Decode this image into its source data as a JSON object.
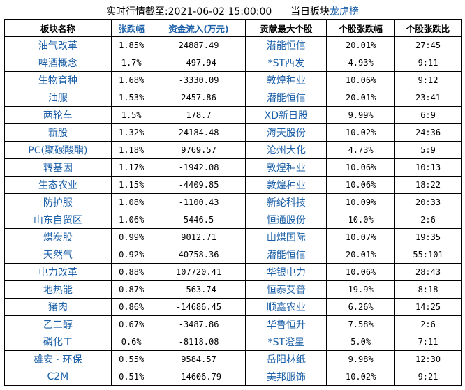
{
  "title": {
    "prefix": "实时行情截至:2021-06-02 15:00:00",
    "label": "当日板块",
    "link": "龙虎榜"
  },
  "headers": [
    "板块名称",
    "张跌幅",
    "资金流入(万元)",
    "贡献最大个股",
    "个股张跌幅",
    "个股张跌比"
  ],
  "rows": [
    [
      "油气改革",
      "1.85%",
      "24887.49",
      "潜能恒信",
      "20.01%",
      "27:45"
    ],
    [
      "啤酒概念",
      "1.7%",
      "-497.94",
      "*ST西发",
      "4.93%",
      "9:11"
    ],
    [
      "生物育种",
      "1.68%",
      "-3330.09",
      "敦煌种业",
      "10.06%",
      "9:12"
    ],
    [
      "油服",
      "1.53%",
      "2457.86",
      "潜能恒信",
      "20.01%",
      "23:41"
    ],
    [
      "两轮车",
      "1.5%",
      "178.7",
      "XD新日股",
      "9.99%",
      "6:9"
    ],
    [
      "新股",
      "1.32%",
      "24184.48",
      "海天股份",
      "10.02%",
      "24:36"
    ],
    [
      "PC(聚碳酸酯)",
      "1.18%",
      "9769.57",
      "沧州大化",
      "4.73%",
      "5:9"
    ],
    [
      "转基因",
      "1.17%",
      "-1942.08",
      "敦煌种业",
      "10.06%",
      "10:13"
    ],
    [
      "生态农业",
      "1.15%",
      "-4409.85",
      "敦煌种业",
      "10.06%",
      "18:22"
    ],
    [
      "防护服",
      "1.08%",
      "-1100.43",
      "新纶科技",
      "10.09%",
      "20:33"
    ],
    [
      "山东自贸区",
      "1.06%",
      "5446.5",
      "恒通股份",
      "10.0%",
      "2:6"
    ],
    [
      "煤炭股",
      "0.99%",
      "9012.71",
      "山煤国际",
      "10.07%",
      "19:35"
    ],
    [
      "天然气",
      "0.92%",
      "40758.36",
      "潜能恒信",
      "20.01%",
      "55:101"
    ],
    [
      "电力改革",
      "0.88%",
      "107720.41",
      "华银电力",
      "10.06%",
      "28:43"
    ],
    [
      "地热能",
      "0.87%",
      "-563.74",
      "恒泰艾普",
      "19.9%",
      "8:18"
    ],
    [
      "猪肉",
      "0.86%",
      "-14686.45",
      "顺鑫农业",
      "6.26%",
      "14:25"
    ],
    [
      "乙二醇",
      "0.67%",
      "-3487.86",
      "华鲁恒升",
      "7.58%",
      "2:6"
    ],
    [
      "磷化工",
      "0.6%",
      "-8118.08",
      "*ST澄星",
      "5.0%",
      "7:11"
    ],
    [
      "雄安 · 环保",
      "0.55%",
      "9584.57",
      "岳阳林纸",
      "9.98%",
      "12:30"
    ],
    [
      "C2M",
      "0.51%",
      "-14606.79",
      "美邦服饰",
      "10.02%",
      "9:21"
    ]
  ]
}
